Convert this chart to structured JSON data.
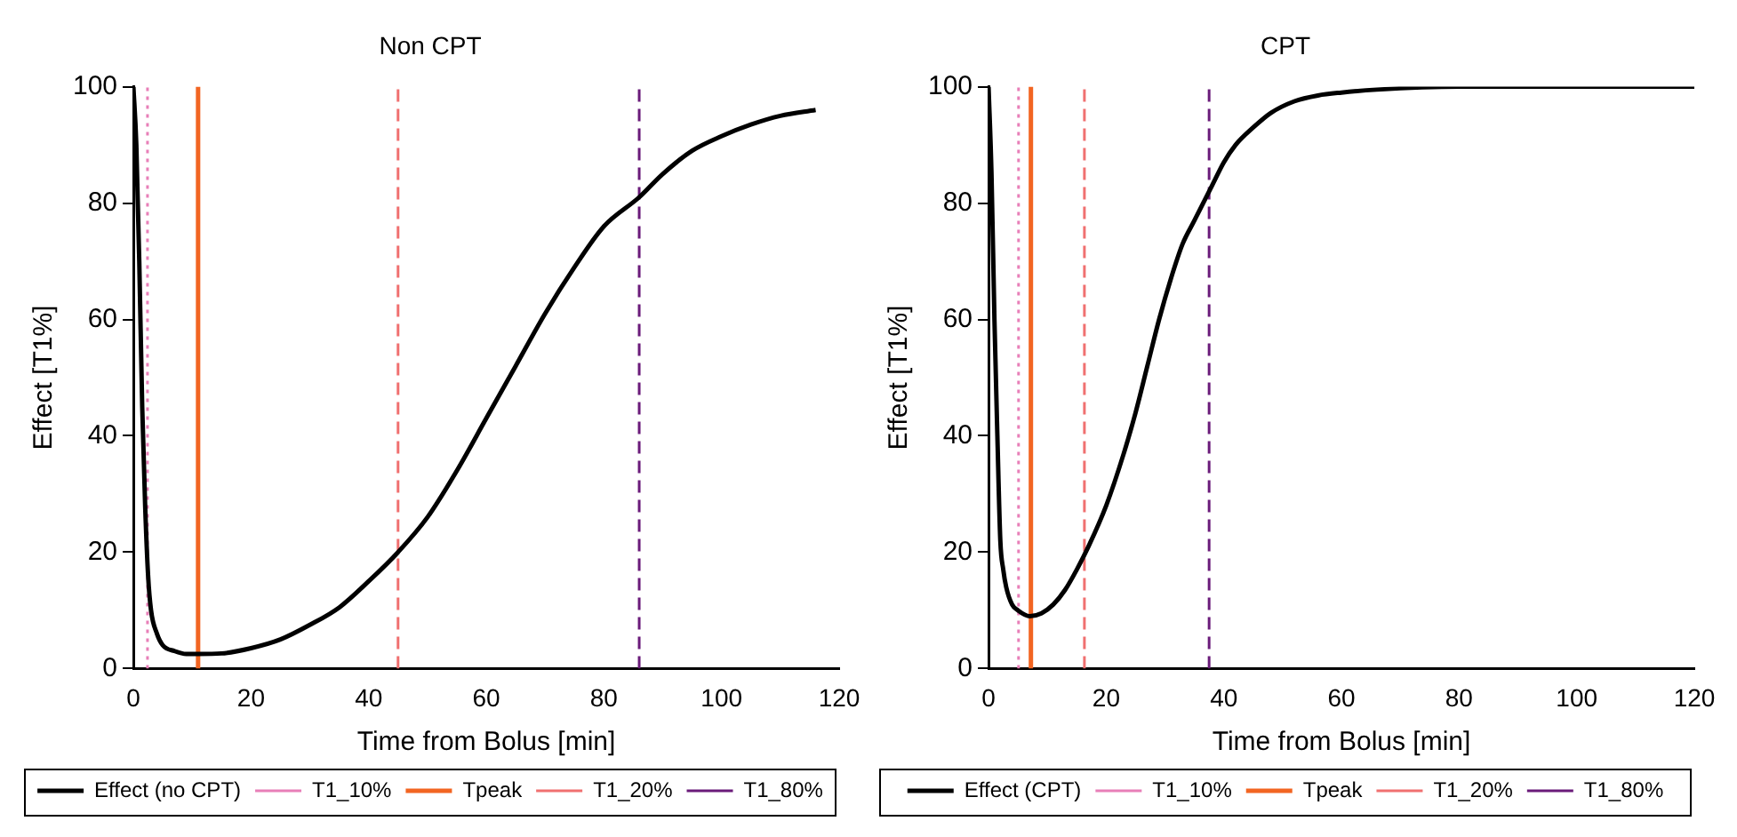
{
  "chart_data": [
    {
      "type": "line",
      "title": "Non CPT",
      "xlabel": "Time from Bolus [min]",
      "ylabel": "Effect [T1%]",
      "xlim": [
        0,
        120
      ],
      "xticks": [
        0,
        20,
        40,
        60,
        80,
        100,
        120
      ],
      "ylim": [
        0,
        100
      ],
      "yticks": [
        0,
        20,
        40,
        60,
        80,
        100
      ],
      "grid": false,
      "legend": "bottom",
      "series": [
        {
          "name": "Effect (no CPT)",
          "color": "#000000",
          "x": [
            0,
            0.5,
            1,
            1.5,
            2,
            2.5,
            3,
            4,
            5,
            7,
            9,
            11,
            15,
            20,
            25,
            30,
            35,
            40,
            45,
            50,
            55,
            60,
            65,
            70,
            75,
            80,
            86,
            90,
            95,
            100,
            105,
            110,
            116
          ],
          "values": [
            100,
            90,
            70,
            45,
            28,
            16,
            10,
            6,
            4,
            3,
            2.5,
            2.5,
            2.6,
            3.5,
            5,
            7.5,
            10.5,
            15,
            20,
            26,
            34,
            43,
            52,
            61,
            69,
            76,
            81,
            85,
            89,
            91.5,
            93.5,
            95,
            96
          ]
        }
      ],
      "ref_lines": [
        {
          "axis": "x",
          "value": 2.4,
          "label": "T1_10%",
          "color": "#e87fb8",
          "line_style": "dotted"
        },
        {
          "axis": "x",
          "value": 11,
          "label": "Tpeak",
          "color": "#f26522",
          "line_style": "solid"
        },
        {
          "axis": "x",
          "value": 45,
          "label": "T1_20%",
          "color": "#f07070",
          "line_style": "dashed"
        },
        {
          "axis": "x",
          "value": 86,
          "label": "T1_80%",
          "color": "#6a1b7a",
          "line_style": "dashed"
        }
      ]
    },
    {
      "type": "line",
      "title": "CPT",
      "xlabel": "Time from Bolus [min]",
      "ylabel": "Effect [T1%]",
      "xlim": [
        0,
        120
      ],
      "xticks": [
        0,
        20,
        40,
        60,
        80,
        100,
        120
      ],
      "ylim": [
        0,
        100
      ],
      "yticks": [
        0,
        20,
        40,
        60,
        80,
        100
      ],
      "grid": false,
      "legend": "bottom",
      "series": [
        {
          "name": "Effect (CPT)",
          "color": "#000000",
          "x": [
            0,
            0.5,
            1,
            1.5,
            2,
            2.5,
            3,
            4,
            5,
            7,
            9,
            11,
            13,
            15,
            17,
            20,
            23,
            25,
            27,
            29,
            31,
            33,
            35,
            38,
            40,
            42,
            45,
            48,
            52,
            56,
            60,
            66,
            80,
            120
          ],
          "values": [
            100,
            85,
            60,
            40,
            22,
            17,
            14,
            11,
            10,
            9,
            9.5,
            11,
            13.5,
            17,
            21,
            28,
            37,
            44,
            52,
            60,
            67,
            73,
            77,
            83,
            87,
            90,
            93,
            95.5,
            97.5,
            98.5,
            99,
            99.5,
            100,
            100
          ]
        }
      ],
      "ref_lines": [
        {
          "axis": "x",
          "value": 5.1,
          "label": "T1_10%",
          "color": "#e87fb8",
          "line_style": "dotted"
        },
        {
          "axis": "x",
          "value": 7.2,
          "label": "Tpeak",
          "color": "#f26522",
          "line_style": "solid"
        },
        {
          "axis": "x",
          "value": 16.3,
          "label": "T1_20%",
          "color": "#f07070",
          "line_style": "dashed"
        },
        {
          "axis": "x",
          "value": 37.5,
          "label": "T1_80%",
          "color": "#6a1b7a",
          "line_style": "dashed"
        }
      ]
    }
  ]
}
